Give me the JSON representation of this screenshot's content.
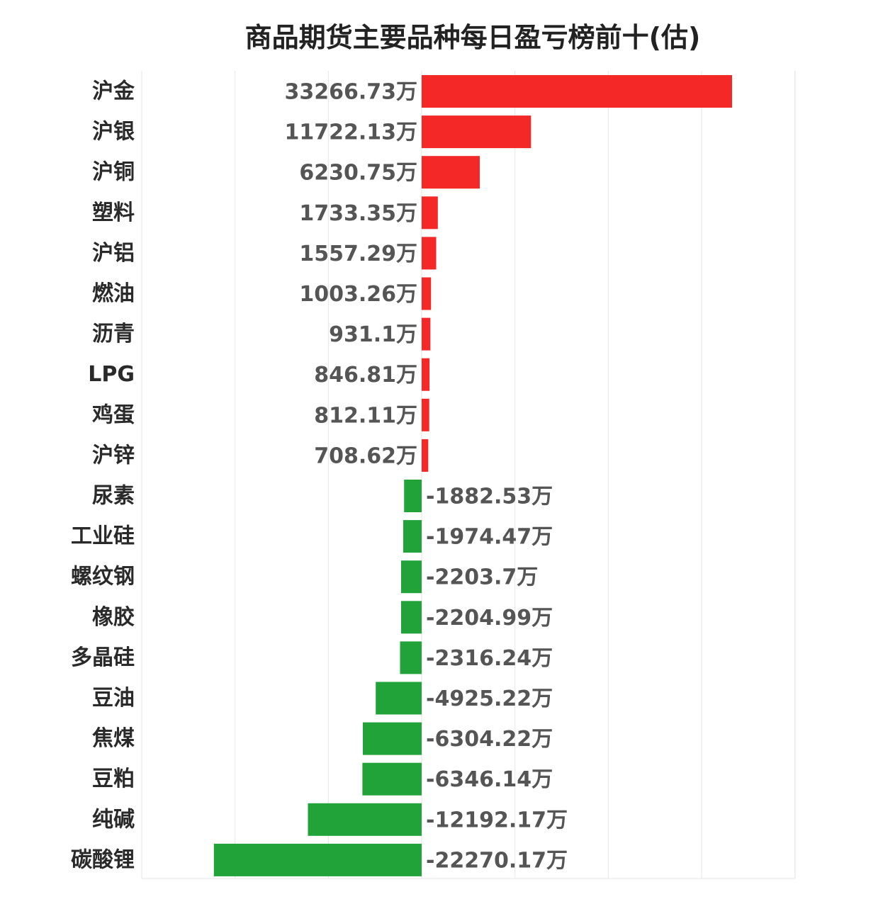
{
  "chart_data": {
    "type": "bar",
    "orientation": "horizontal",
    "title": "商品期货主要品种每日盈亏榜前十(估)",
    "unit": "万",
    "grid": true,
    "legend": "none",
    "xlim": [
      -30000,
      40000
    ],
    "colors": {
      "positive": "#f52828",
      "negative": "#21a33a"
    },
    "categories": [
      "沪金",
      "沪银",
      "沪铜",
      "塑料",
      "沪铝",
      "燃油",
      "沥青",
      "LPG",
      "鸡蛋",
      "沪锌",
      "尿素",
      "工业硅",
      "螺纹钢",
      "橡胶",
      "多晶硅",
      "豆油",
      "焦煤",
      "豆粕",
      "纯碱",
      "碳酸锂"
    ],
    "values": [
      33266.73,
      11722.13,
      6230.75,
      1733.35,
      1557.29,
      1003.26,
      931.1,
      846.81,
      812.11,
      708.62,
      -1882.53,
      -1974.47,
      -2203.7,
      -2204.99,
      -2316.24,
      -4925.22,
      -6304.22,
      -6346.14,
      -12192.17,
      -22270.17
    ],
    "value_labels": [
      "33266.73万",
      "11722.13万",
      "6230.75万",
      "1733.35万",
      "1557.29万",
      "1003.26万",
      "931.1万",
      "846.81万",
      "812.11万",
      "708.62万",
      "-1882.53万",
      "-1974.47万",
      "-2203.7万",
      "-2204.99万",
      "-2316.24万",
      "-4925.22万",
      "-6304.22万",
      "-6346.14万",
      "-12192.17万",
      "-22270.17万"
    ]
  }
}
